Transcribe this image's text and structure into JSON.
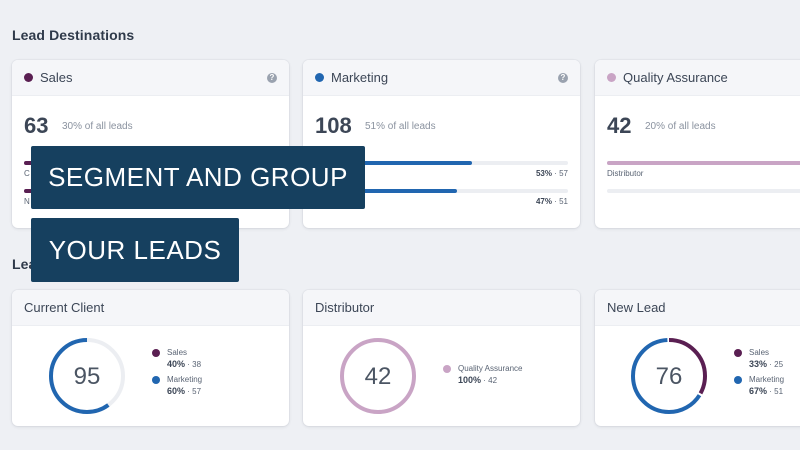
{
  "lead_destinations": {
    "title": "Lead Destinations",
    "cards": [
      {
        "name": "Sales",
        "color": "#5a1f52",
        "count": "63",
        "percent_text": "30% of all leads",
        "bars": [
          {
            "label": "C",
            "fill_fraction": 0.4,
            "pct": "",
            "sep": "",
            "count": ""
          },
          {
            "label": "N",
            "fill_fraction": 0.33,
            "pct": "",
            "sep": "",
            "count": ""
          }
        ]
      },
      {
        "name": "Marketing",
        "color": "#2166b0",
        "count": "108",
        "percent_text": "51% of all leads",
        "bars": [
          {
            "label": "nt",
            "fill_fraction": 0.53,
            "pct": "53%",
            "sep": " · ",
            "count": "57"
          },
          {
            "label": "",
            "fill_fraction": 0.47,
            "pct": "47%",
            "sep": " · ",
            "count": "51"
          }
        ]
      },
      {
        "name": "Quality Assurance",
        "color": "#c9a4c5",
        "count": "42",
        "percent_text": "20% of all leads",
        "bars": [
          {
            "label": "Distributor",
            "fill_fraction": 1.0,
            "pct": "",
            "sep": "",
            "count": ""
          }
        ]
      }
    ]
  },
  "lead_sources": {
    "title_partial": "Lea",
    "cards": [
      {
        "name": "Current Client",
        "total": "95",
        "segments": [
          {
            "name": "Sales",
            "pct": "40%",
            "count": "38",
            "color": "#5a1f52",
            "fraction": 0.4
          },
          {
            "name": "Marketing",
            "pct": "60%",
            "count": "57",
            "color": "#2166b0",
            "fraction": 0.6
          }
        ]
      },
      {
        "name": "Distributor",
        "total": "42",
        "segments": [
          {
            "name": "Quality Assurance",
            "pct": "100%",
            "count": "42",
            "color": "#c9a4c5",
            "fraction": 1.0
          }
        ]
      },
      {
        "name": "New Lead",
        "total": "76",
        "segments": [
          {
            "name": "Sales",
            "pct": "33%",
            "count": "25",
            "color": "#5a1f52",
            "fraction": 0.33
          },
          {
            "name": "Marketing",
            "pct": "67%",
            "count": "51",
            "color": "#2166b0",
            "fraction": 0.67
          }
        ]
      }
    ]
  },
  "banners": {
    "line1": "SEGMENT AND GROUP",
    "line2": "YOUR LEADS"
  },
  "separator": " · "
}
